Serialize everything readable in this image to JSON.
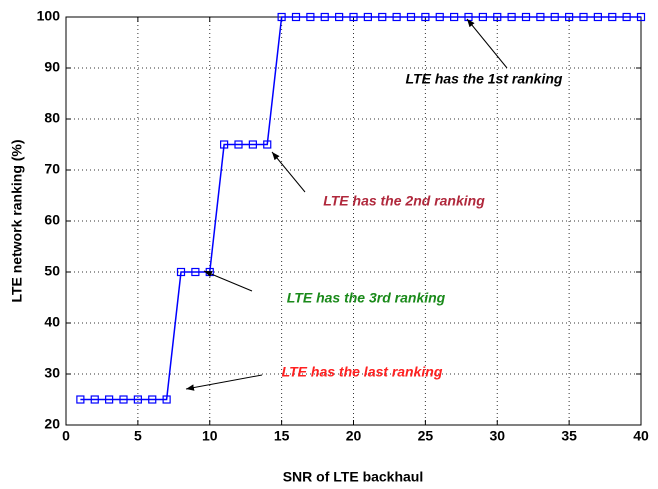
{
  "chart_data": {
    "type": "line",
    "xlabel": "SNR of LTE backhaul",
    "ylabel": "LTE network ranking (%)",
    "x": [
      1,
      2,
      3,
      4,
      5,
      6,
      7,
      8,
      9,
      10,
      11,
      12,
      13,
      14,
      15,
      16,
      17,
      18,
      19,
      20,
      21,
      22,
      23,
      24,
      25,
      26,
      27,
      28,
      29,
      30,
      31,
      32,
      33,
      34,
      35,
      36,
      37,
      38,
      39,
      40
    ],
    "series": [
      {
        "name": "LTE",
        "color": "#0000ff",
        "values": [
          25,
          25,
          25,
          25,
          25,
          25,
          25,
          50,
          50,
          50,
          75,
          75,
          75,
          75,
          100,
          100,
          100,
          100,
          100,
          100,
          100,
          100,
          100,
          100,
          100,
          100,
          100,
          100,
          100,
          100,
          100,
          100,
          100,
          100,
          100,
          100,
          100,
          100,
          100,
          100
        ]
      }
    ],
    "xlim": [
      0,
      40
    ],
    "xticks": [
      0,
      5,
      10,
      15,
      20,
      25,
      30,
      35,
      40
    ],
    "ylim": [
      20,
      100
    ],
    "yticks": [
      20,
      30,
      40,
      50,
      60,
      70,
      80,
      90,
      100
    ],
    "grid": true,
    "annotations": [
      {
        "text": "LTE has the 1st ranking",
        "color": "#000000"
      },
      {
        "text": "LTE has the 2nd ranking",
        "color": "#b0283c"
      },
      {
        "text": "LTE has the 3rd ranking",
        "color": "#1a8a1a"
      },
      {
        "text": "LTE has the last ranking",
        "color": "#ff2020"
      }
    ]
  }
}
